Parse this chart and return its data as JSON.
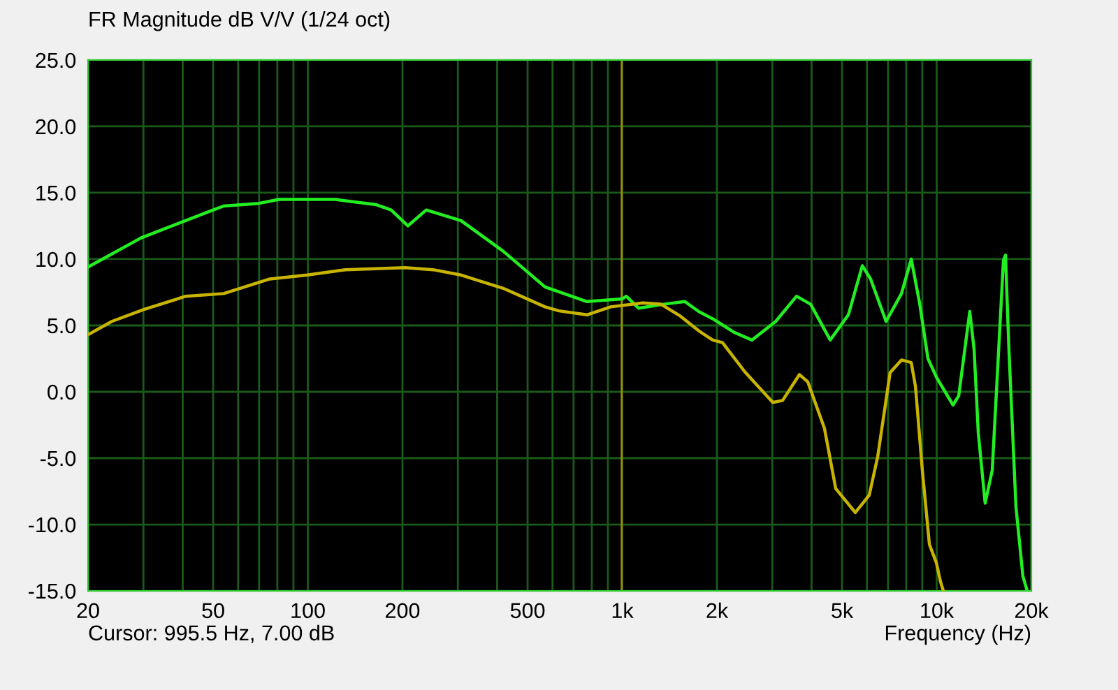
{
  "chart_data": {
    "type": "line",
    "title": "FR Magnitude dB V/V (1/24 oct)",
    "xlabel": "Frequency (Hz)",
    "annotations": [
      "Cursor: 995.5 Hz, 7.00 dB"
    ],
    "log": "x",
    "grid": true,
    "legend": false,
    "marker": "none",
    "line_style": "solid",
    "xlim": [
      20,
      20000
    ],
    "ylim": [
      -15,
      25
    ],
    "xticks": [
      20,
      {
        "value": 30,
        "label": null
      },
      {
        "value": 40,
        "label": null
      },
      50,
      {
        "value": 60,
        "label": null
      },
      {
        "value": 70,
        "label": null
      },
      {
        "value": 80,
        "label": null
      },
      {
        "value": 90,
        "label": null
      },
      100,
      200,
      {
        "value": 300,
        "label": null
      },
      {
        "value": 400,
        "label": null
      },
      500,
      {
        "value": 600,
        "label": null
      },
      {
        "value": 700,
        "label": null
      },
      {
        "value": 800,
        "label": null
      },
      {
        "value": 900,
        "label": null
      },
      {
        "value": 1000,
        "label": "1k"
      },
      {
        "value": 2000,
        "label": "2k"
      },
      {
        "value": 3000,
        "label": null
      },
      {
        "value": 4000,
        "label": null
      },
      {
        "value": 5000,
        "label": "5k"
      },
      {
        "value": 6000,
        "label": null
      },
      {
        "value": 7000,
        "label": null
      },
      {
        "value": 8000,
        "label": null
      },
      {
        "value": 9000,
        "label": null
      },
      {
        "value": 10000,
        "label": "10k"
      },
      {
        "value": 20000,
        "label": "20k"
      }
    ],
    "yticks": [
      {
        "value": 25,
        "label": "25.0"
      },
      {
        "value": 20,
        "label": "20.0"
      },
      {
        "value": 15,
        "label": "15.0"
      },
      {
        "value": 10,
        "label": "10.0"
      },
      {
        "value": 5,
        "label": "5.0"
      },
      {
        "value": 0,
        "label": "0.0"
      },
      {
        "value": -5,
        "label": "-5.0"
      },
      {
        "value": -10,
        "label": "-10.0"
      },
      {
        "value": -15,
        "label": "-15.0"
      }
    ],
    "ref_lines": [
      {
        "axis": "x",
        "value": 995.5,
        "color": "#a08c00"
      }
    ],
    "series": [
      {
        "color": "#22ee22",
        "x": [
          20,
          29.5,
          48.7,
          54,
          70,
          81,
          122,
          165,
          184,
          208,
          238,
          307,
          418,
          568,
          772,
          1000,
          1030,
          1128,
          1356,
          1581,
          1750,
          1940,
          2260,
          2583,
          3076,
          3583,
          3973,
          4585,
          5237,
          5800,
          6164,
          6902,
          7726,
          8300,
          8820,
          9380,
          9980,
          11270,
          11750,
          12740,
          13150,
          13560,
          14260,
          15020,
          16300,
          16550,
          16970,
          17870,
          18800,
          19400
        ],
        "values": [
          9.4,
          11.6,
          13.6,
          14.0,
          14.2,
          14.5,
          14.5,
          14.1,
          13.7,
          12.5,
          13.7,
          12.9,
          10.6,
          7.9,
          6.8,
          7.0,
          7.2,
          6.3,
          6.6,
          6.8,
          6.05,
          5.5,
          4.5,
          3.9,
          5.3,
          7.2,
          6.6,
          3.9,
          5.8,
          9.5,
          8.5,
          5.3,
          7.4,
          10.0,
          6.7,
          2.5,
          1.1,
          -1.0,
          -0.3,
          6.05,
          3.2,
          -3.1,
          -8.4,
          -5.9,
          9.9,
          10.3,
          3.2,
          -8.7,
          -13.9,
          -15
        ]
      },
      {
        "color": "#c8b400",
        "x": [
          20,
          23.8,
          30.1,
          40.9,
          54,
          75.7,
          99.7,
          131.5,
          204,
          250,
          307,
          418,
          568,
          629,
          772,
          919,
          1162,
          1328,
          1531,
          1750,
          1940,
          2084,
          2455,
          3012,
          3236,
          3660,
          3890,
          4395,
          4774,
          5510,
          6100,
          6490,
          7110,
          7726,
          8300,
          8560,
          9000,
          9480,
          9980,
          10280,
          10500
        ],
        "values": [
          4.3,
          5.3,
          6.2,
          7.2,
          7.4,
          8.5,
          8.8,
          9.2,
          9.35,
          9.2,
          8.8,
          7.8,
          6.4,
          6.1,
          5.8,
          6.4,
          6.7,
          6.6,
          5.7,
          4.6,
          3.9,
          3.7,
          1.5,
          -0.8,
          -0.65,
          1.3,
          0.75,
          -2.75,
          -7.3,
          -9.1,
          -7.8,
          -4.9,
          1.45,
          2.4,
          2.2,
          0.4,
          -5.9,
          -11.5,
          -12.9,
          -14.3,
          -15
        ]
      }
    ]
  }
}
